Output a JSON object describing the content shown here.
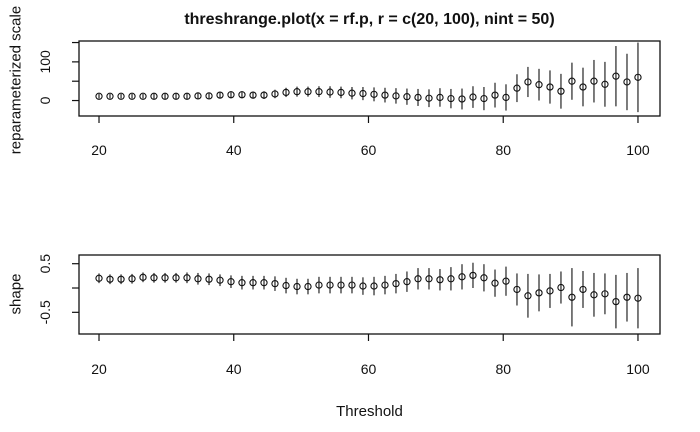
{
  "figure": {
    "title": "threshrange.plot(x = rf.p, r = c(20, 100), nint = 50)",
    "background": "#ffffff",
    "foreground": "#111111"
  },
  "chart_data": [
    {
      "type": "scatter",
      "panel": "reparameterized-scale",
      "title": "threshrange.plot(x = rf.p, r = c(20, 100), nint = 50)",
      "ylabel": "reparameterized scale",
      "xlabel": "",
      "marker": "open-circle",
      "error_bars": true,
      "grid": false,
      "xlim": [
        17.03,
        103.27
      ],
      "ylim": [
        -40,
        154
      ],
      "xticks": [
        20,
        40,
        60,
        80,
        100
      ],
      "xtick_labels": [
        "20",
        "40",
        "60",
        "80",
        "100"
      ],
      "yticks": [
        0,
        50,
        100,
        150
      ],
      "ytick_labels": [
        "0",
        "",
        "100",
        ""
      ],
      "x": [
        20,
        21.63,
        23.27,
        24.9,
        26.53,
        28.16,
        29.8,
        31.43,
        33.06,
        34.69,
        36.33,
        37.96,
        39.59,
        41.22,
        42.86,
        44.49,
        46.12,
        47.76,
        49.39,
        51.02,
        52.65,
        54.29,
        55.92,
        57.55,
        59.18,
        60.82,
        62.45,
        64.08,
        65.71,
        67.35,
        68.98,
        70.61,
        72.24,
        73.88,
        75.51,
        77.14,
        78.78,
        80.41,
        82.04,
        83.67,
        85.31,
        86.94,
        88.57,
        90.2,
        91.84,
        93.47,
        95.1,
        96.73,
        98.37,
        100
      ],
      "series": [
        {
          "name": "estimate",
          "values": [
            11,
            11,
            11,
            11,
            11,
            11,
            11,
            11,
            11,
            12,
            12,
            14,
            15,
            15,
            14,
            14,
            17,
            21,
            23,
            23,
            23,
            22,
            21,
            19,
            18,
            16,
            14,
            12,
            10,
            8,
            6,
            8,
            5,
            4,
            9,
            5,
            14,
            8,
            32,
            48,
            41,
            35,
            24,
            50,
            35,
            50,
            42,
            63,
            48,
            60
          ],
          "ci_half_width": [
            6,
            6,
            6,
            6,
            6,
            7,
            7,
            7,
            7,
            8,
            8,
            8,
            9,
            9,
            9,
            10,
            11,
            12,
            13,
            13,
            14,
            15,
            15,
            16,
            17,
            18,
            19,
            20,
            21,
            22,
            23,
            24,
            25,
            27,
            28,
            30,
            32,
            34,
            36,
            39,
            41,
            43,
            45,
            48,
            50,
            55,
            58,
            78,
            73,
            90
          ]
        }
      ]
    },
    {
      "type": "scatter",
      "panel": "shape",
      "title": "",
      "ylabel": "shape",
      "xlabel": "Threshold",
      "marker": "open-circle",
      "error_bars": true,
      "grid": false,
      "xlim": [
        17.03,
        103.27
      ],
      "ylim": [
        -0.946,
        0.679
      ],
      "xticks": [
        20,
        40,
        60,
        80,
        100
      ],
      "xtick_labels": [
        "20",
        "40",
        "60",
        "80",
        "100"
      ],
      "yticks": [
        -0.5,
        0,
        0.5
      ],
      "ytick_labels": [
        "-0.5",
        "",
        "0.5"
      ],
      "x": [
        20,
        21.63,
        23.27,
        24.9,
        26.53,
        28.16,
        29.8,
        31.43,
        33.06,
        34.69,
        36.33,
        37.96,
        39.59,
        41.22,
        42.86,
        44.49,
        46.12,
        47.76,
        49.39,
        51.02,
        52.65,
        54.29,
        55.92,
        57.55,
        59.18,
        60.82,
        62.45,
        64.08,
        65.71,
        67.35,
        68.98,
        70.61,
        72.24,
        73.88,
        75.51,
        77.14,
        78.78,
        80.41,
        82.04,
        83.67,
        85.31,
        86.94,
        88.57,
        90.2,
        91.84,
        93.47,
        95.1,
        96.73,
        98.37,
        100
      ],
      "series": [
        {
          "name": "estimate",
          "values": [
            0.2,
            0.18,
            0.18,
            0.19,
            0.22,
            0.21,
            0.21,
            0.21,
            0.21,
            0.19,
            0.18,
            0.16,
            0.13,
            0.11,
            0.11,
            0.11,
            0.09,
            0.05,
            0.03,
            0.03,
            0.06,
            0.06,
            0.06,
            0.06,
            0.04,
            0.04,
            0.06,
            0.09,
            0.13,
            0.19,
            0.19,
            0.17,
            0.19,
            0.23,
            0.26,
            0.21,
            0.1,
            0.14,
            -0.03,
            -0.16,
            -0.1,
            -0.06,
            0.01,
            -0.19,
            -0.03,
            -0.14,
            -0.12,
            -0.28,
            -0.19,
            -0.21
          ],
          "ci_half_width": [
            0.1,
            0.1,
            0.1,
            0.1,
            0.1,
            0.1,
            0.1,
            0.1,
            0.11,
            0.12,
            0.12,
            0.12,
            0.13,
            0.14,
            0.14,
            0.14,
            0.15,
            0.16,
            0.16,
            0.16,
            0.17,
            0.17,
            0.17,
            0.17,
            0.18,
            0.19,
            0.19,
            0.2,
            0.21,
            0.22,
            0.22,
            0.22,
            0.24,
            0.26,
            0.26,
            0.28,
            0.28,
            0.3,
            0.33,
            0.45,
            0.38,
            0.35,
            0.33,
            0.6,
            0.38,
            0.45,
            0.42,
            0.55,
            0.5,
            0.62
          ]
        }
      ]
    }
  ]
}
